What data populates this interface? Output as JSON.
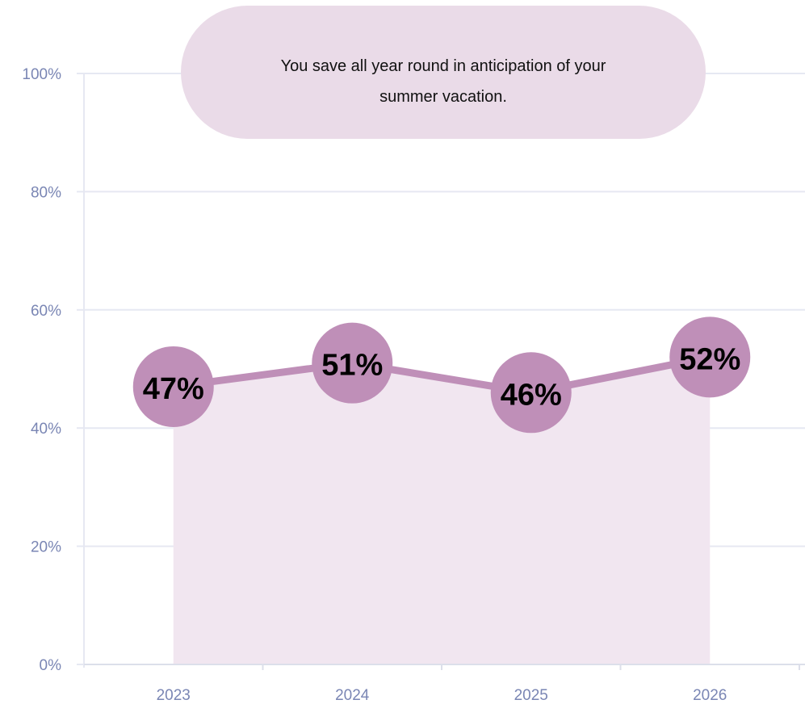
{
  "callout": {
    "line1": "You save all year round in anticipation of your",
    "line2": "summer vacation."
  },
  "colors": {
    "accent": "#bf8fb8",
    "area_fill": "#f1e6f0",
    "callout_bg": "#eadbe8",
    "axis_text": "#7a86b4",
    "grid": "#e6e8f2",
    "label_text": "#000000"
  },
  "chart_data": {
    "type": "line",
    "title": "",
    "xlabel": "",
    "ylabel": "",
    "categories": [
      "2023",
      "2024",
      "2025",
      "2026"
    ],
    "values": [
      47,
      51,
      46,
      52
    ],
    "data_labels": [
      "47%",
      "51%",
      "46%",
      "52%"
    ],
    "y_ticks": [
      "0%",
      "20%",
      "40%",
      "60%",
      "80%",
      "100%"
    ],
    "ylim": [
      0,
      100
    ],
    "grid": true,
    "legend": "none",
    "area_under_line": true
  }
}
